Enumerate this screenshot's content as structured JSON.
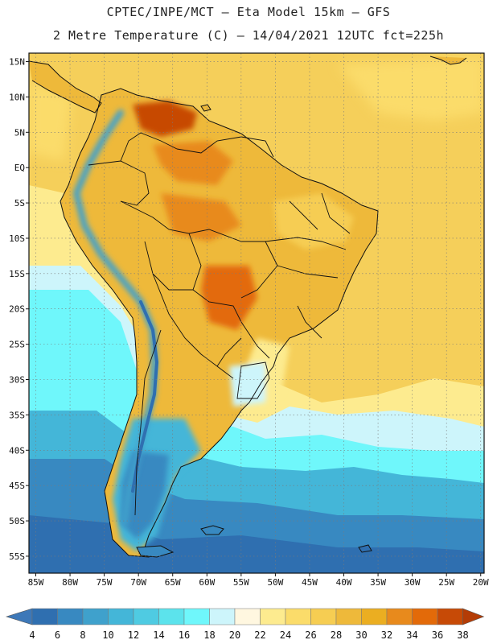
{
  "header": {
    "line1": "CPTEC/INPE/MCT –  Eta Model 15km – GFS",
    "line2": "2 Metre Temperature (C) – 14/04/2021 12UTC fct=225h"
  },
  "axes": {
    "lat_labels": [
      "15N",
      "10N",
      "5N",
      "EQ",
      "5S",
      "10S",
      "15S",
      "20S",
      "25S",
      "30S",
      "35S",
      "40S",
      "45S",
      "50S",
      "55S"
    ],
    "lon_labels": [
      "85W",
      "80W",
      "75W",
      "70W",
      "65W",
      "60W",
      "55W",
      "50W",
      "45W",
      "40W",
      "35W",
      "30W",
      "25W",
      "20W"
    ]
  },
  "colorbar": {
    "labels": [
      "4",
      "6",
      "8",
      "10",
      "12",
      "14",
      "16",
      "18",
      "20",
      "22",
      "24",
      "26",
      "28",
      "30",
      "32",
      "34",
      "36",
      "38"
    ],
    "colors": [
      "#3d78b8",
      "#2f6fb0",
      "#3889c1",
      "#3fa1cc",
      "#44b6d8",
      "#4fcbe2",
      "#5ce3ec",
      "#6ff7fb",
      "#cdf5fb",
      "#fff7e0",
      "#fdeb8f",
      "#fbdc6a",
      "#f6cd52",
      "#eeb93a",
      "#ebae21",
      "#e88a1c",
      "#e36a09",
      "#c74a06",
      "#b43c06"
    ]
  },
  "palette": {
    "ocean_warm": "#f5cf5a",
    "ocean_mild": "#fdeb8f",
    "ocean_cool": "#6ff7fb",
    "ocean_cold": "#3889c1",
    "ocean_coldest": "#2f6fb0",
    "land_hot": "#eeb93a",
    "land_hottest": "#c74a06",
    "andes": "#3d78b8",
    "border": "#111111"
  }
}
